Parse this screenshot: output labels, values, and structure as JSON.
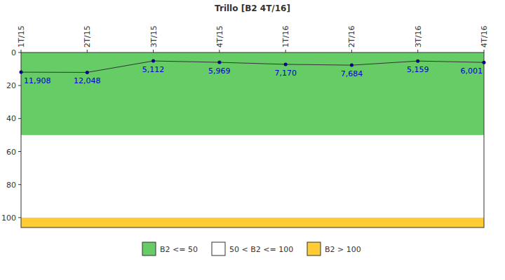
{
  "chart_data": {
    "type": "line",
    "title": "Trillo [B2 4T/16]",
    "categories": [
      "1T/15",
      "2T/15",
      "3T/15",
      "4T/15",
      "1T/16",
      "2T/16",
      "3T/16",
      "4T/16"
    ],
    "series": [
      {
        "name": "B2",
        "color": "#000080",
        "values": [
          11.908,
          12.048,
          5.112,
          5.969,
          7.17,
          7.684,
          5.159,
          6.001
        ],
        "value_labels": [
          "11,908",
          "12,048",
          "5,112",
          "5,969",
          "7,170",
          "7,684",
          "5,159",
          "6,001"
        ]
      }
    ],
    "bands": [
      {
        "name": "B2 <= 50",
        "color": "#66cc66",
        "from": 0,
        "to": 50
      },
      {
        "name": "50 < B2 <= 100",
        "color": "#ffffff",
        "from": 50,
        "to": 100
      },
      {
        "name": "B2 > 100",
        "color": "#ffcc33",
        "from": 100,
        "to": 106
      }
    ],
    "ylim": [
      0,
      106
    ],
    "yticks": [
      0,
      20,
      40,
      60,
      80,
      100
    ],
    "data_labels": true,
    "marker": "circle"
  }
}
